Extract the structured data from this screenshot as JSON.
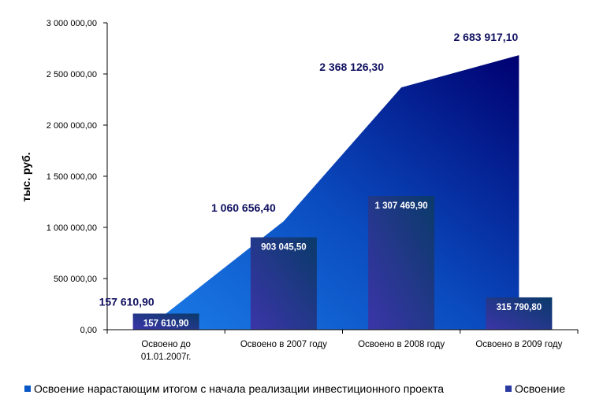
{
  "chart_data": {
    "type": "area+bar",
    "ylabel": "тыс. руб.",
    "ylim": [
      0,
      3000000
    ],
    "yticks": [
      0,
      500000,
      1000000,
      1500000,
      2000000,
      2500000,
      3000000
    ],
    "ytick_labels": [
      "0,00",
      "500 000,00",
      "1 000 000,00",
      "1 500 000,00",
      "2 000 000,00",
      "2 500 000,00",
      "3 000 000,00"
    ],
    "categories": [
      [
        "Освоено до",
        "01.01.2007г."
      ],
      [
        "Освоено в 2007 году"
      ],
      [
        "Освоено в 2008 году"
      ],
      [
        "Освоено в 2009 году"
      ]
    ],
    "series": [
      {
        "name": "Освоение нарастающим итогом с начала реализации инвестиционного проекта",
        "kind": "area",
        "values": [
          157610.9,
          1060656.4,
          2368126.3,
          2683917.1
        ],
        "labels": [
          "157 610,90",
          "1 060 656,40",
          "2 368 126,30",
          "2 683 917,10"
        ],
        "color_start": "#1a78e0",
        "color_end": "#000070"
      },
      {
        "name": "Освоение",
        "kind": "bar",
        "values": [
          157610.9,
          903045.5,
          1307469.9,
          315790.8
        ],
        "labels": [
          "157 610,90",
          "903 045,50",
          "1 307 469,90",
          "315 790,80"
        ],
        "color_start": "#3a3aa0",
        "color_end": "#0a3070"
      }
    ],
    "legend_position": "bottom"
  }
}
